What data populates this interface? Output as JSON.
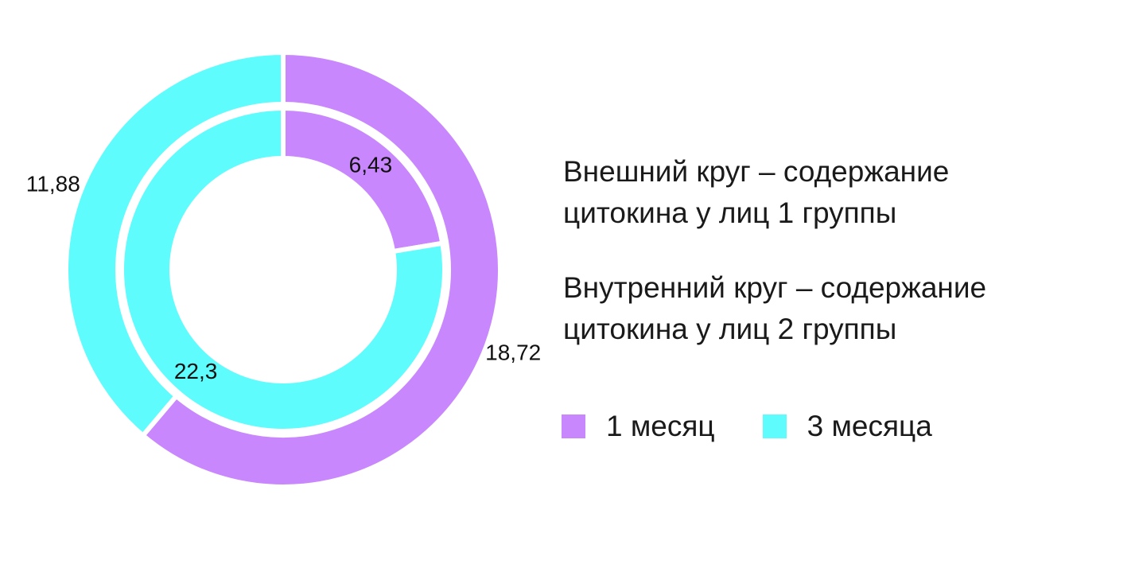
{
  "chart_data": {
    "type": "pie",
    "subtype": "nested-donut",
    "title": "",
    "description": {
      "outer": [
        "Внешний круг – содержание",
        "цитокина у лиц 1 группы"
      ],
      "inner": [
        "Внутренний круг – содержание",
        "цитокина у лиц 2 группы"
      ]
    },
    "categories": [
      "1 месяц",
      "3 месяца"
    ],
    "colors": [
      "#c987fd",
      "#5efcfc"
    ],
    "series": [
      {
        "ring": "outer",
        "values": [
          18.72,
          11.88
        ],
        "labels": [
          "18,72",
          "11,88"
        ]
      },
      {
        "ring": "inner",
        "values": [
          6.43,
          22.3
        ],
        "labels": [
          "6,43",
          "22,3"
        ]
      }
    ],
    "legend_position": "bottom-right"
  }
}
